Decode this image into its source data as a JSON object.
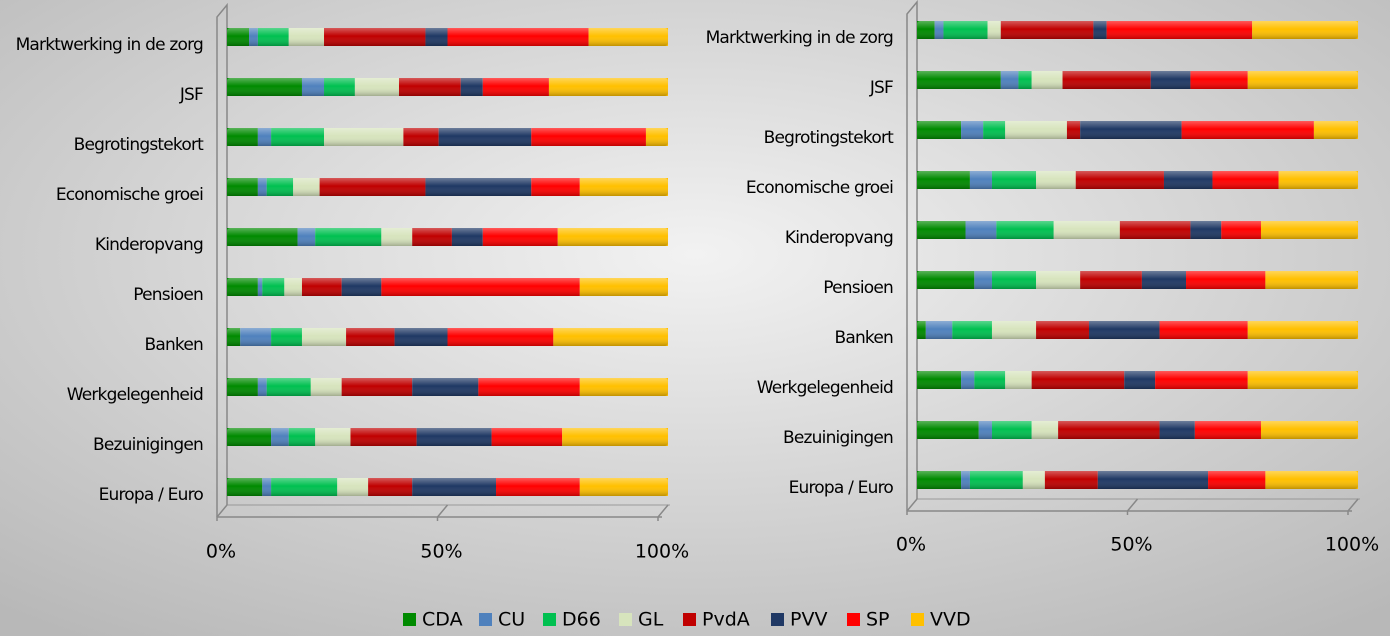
{
  "chart_data": [
    {
      "type": "stacked_barh",
      "categories": [
        "Marktwerking in de zorg",
        "JSF",
        "Begrotingstekort",
        "Economische groei",
        "Kinderopvang",
        "Pensioen",
        "Banken",
        "Werkgelegenheid",
        "Bezuinigingen",
        "Europa / Euro"
      ],
      "xlim": [
        0,
        100
      ],
      "xticks": [
        {
          "value": 0,
          "label": "0%"
        },
        {
          "value": 50,
          "label": "50%"
        },
        {
          "value": 100,
          "label": "100%"
        }
      ],
      "legend": "bottom",
      "series": [
        {
          "name": "CDA",
          "color": "#008a00",
          "values": [
            5,
            17,
            7,
            7,
            16,
            7,
            3,
            7,
            10,
            8
          ]
        },
        {
          "name": "CU",
          "color": "#4f81bd",
          "values": [
            2,
            5,
            3,
            2,
            4,
            1,
            7,
            2,
            4,
            2
          ]
        },
        {
          "name": "D66",
          "color": "#00c050",
          "values": [
            7,
            7,
            12,
            6,
            15,
            5,
            7,
            10,
            6,
            15
          ]
        },
        {
          "name": "GL",
          "color": "#d7e4bd",
          "values": [
            8,
            10,
            18,
            6,
            7,
            4,
            10,
            7,
            8,
            7
          ]
        },
        {
          "name": "PvdA",
          "color": "#c00000",
          "values": [
            23,
            14,
            8,
            24,
            9,
            9,
            11,
            16,
            15,
            10
          ]
        },
        {
          "name": "PVV",
          "color": "#1f3864",
          "values": [
            5,
            5,
            21,
            24,
            7,
            9,
            12,
            15,
            17,
            19
          ]
        },
        {
          "name": "SP",
          "color": "#ff0000",
          "values": [
            32,
            15,
            26,
            11,
            17,
            45,
            24,
            23,
            16,
            19
          ]
        },
        {
          "name": "VVD",
          "color": "#ffc000",
          "values": [
            18,
            27,
            5,
            20,
            25,
            20,
            26,
            20,
            24,
            20
          ]
        }
      ]
    },
    {
      "type": "stacked_barh",
      "categories": [
        "Marktwerking in de zorg",
        "JSF",
        "Begrotingstekort",
        "Economische groei",
        "Kinderopvang",
        "Pensioen",
        "Banken",
        "Werkgelegenheid",
        "Bezuinigingen",
        "Europa / Euro"
      ],
      "xlim": [
        0,
        100
      ],
      "xticks": [
        {
          "value": 0,
          "label": "0%"
        },
        {
          "value": 50,
          "label": "50%"
        },
        {
          "value": 100,
          "label": "100%"
        }
      ],
      "series": [
        {
          "name": "CDA",
          "color": "#008a00",
          "values": [
            4,
            19,
            10,
            12,
            11,
            13,
            2,
            10,
            14,
            10
          ]
        },
        {
          "name": "CU",
          "color": "#4f81bd",
          "values": [
            2,
            4,
            5,
            5,
            7,
            4,
            6,
            3,
            3,
            2
          ]
        },
        {
          "name": "D66",
          "color": "#00c050",
          "values": [
            10,
            3,
            5,
            10,
            13,
            10,
            9,
            7,
            9,
            12
          ]
        },
        {
          "name": "GL",
          "color": "#d7e4bd",
          "values": [
            3,
            7,
            14,
            9,
            15,
            10,
            10,
            6,
            6,
            5
          ]
        },
        {
          "name": "PvdA",
          "color": "#c00000",
          "values": [
            21,
            20,
            3,
            20,
            16,
            14,
            12,
            21,
            23,
            12
          ]
        },
        {
          "name": "PVV",
          "color": "#1f3864",
          "values": [
            3,
            9,
            23,
            11,
            7,
            10,
            16,
            7,
            8,
            25
          ]
        },
        {
          "name": "SP",
          "color": "#ff0000",
          "values": [
            33,
            13,
            30,
            15,
            9,
            18,
            20,
            21,
            15,
            13
          ]
        },
        {
          "name": "VVD",
          "color": "#ffc000",
          "values": [
            24,
            25,
            10,
            18,
            22,
            21,
            25,
            25,
            22,
            21
          ]
        }
      ]
    }
  ]
}
